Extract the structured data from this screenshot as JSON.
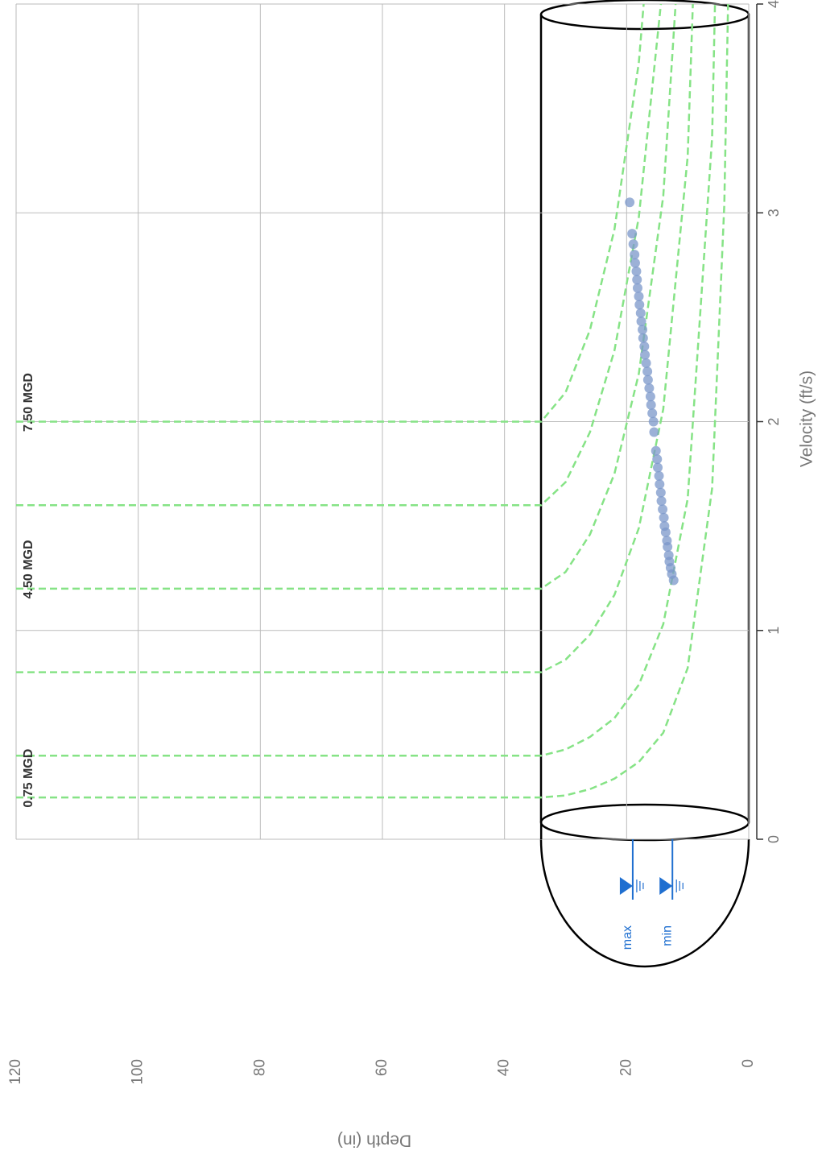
{
  "chart_data": {
    "type": "scatter",
    "xlabel": "Velocity (ft/s)",
    "ylabel": "Depth (in)",
    "xlim": [
      0,
      4
    ],
    "xticks": [
      0,
      1,
      2,
      3,
      4
    ],
    "ylim": [
      0,
      120
    ],
    "yticks": [
      0,
      20,
      40,
      60,
      80,
      100,
      120
    ],
    "grid": true,
    "pipe_diameter": 34,
    "color": "#7b97c9",
    "x": [
      1.24,
      1.27,
      1.3,
      1.33,
      1.36,
      1.4,
      1.43,
      1.47,
      1.5,
      1.54,
      1.58,
      1.62,
      1.66,
      1.7,
      1.74,
      1.78,
      1.82,
      1.86,
      1.95,
      2.0,
      2.04,
      2.08,
      2.12,
      2.16,
      2.2,
      2.24,
      2.28,
      2.32,
      2.36,
      2.4,
      2.44,
      2.48,
      2.52,
      2.56,
      2.6,
      2.64,
      2.68,
      2.72,
      2.76,
      2.8,
      2.85,
      2.9,
      3.05
    ],
    "y": [
      12.3,
      12.6,
      12.8,
      13.0,
      13.1,
      13.3,
      13.4,
      13.6,
      13.8,
      13.9,
      14.1,
      14.3,
      14.4,
      14.6,
      14.7,
      14.9,
      15.0,
      15.2,
      15.5,
      15.6,
      15.8,
      16.0,
      16.1,
      16.3,
      16.5,
      16.6,
      16.8,
      17.0,
      17.1,
      17.3,
      17.4,
      17.6,
      17.7,
      17.9,
      18.0,
      18.2,
      18.3,
      18.4,
      18.6,
      18.7,
      18.9,
      19.1,
      19.5
    ],
    "iso_lines": [
      {
        "label": "0.75 MGD",
        "color": "#86e386",
        "x": [
          0.2,
          0.2,
          0.21,
          0.24,
          0.29,
          0.37,
          0.51,
          0.82,
          1.68,
          3.04,
          4.6
        ],
        "y": [
          120,
          34,
          30,
          26,
          22,
          18,
          14,
          10,
          6,
          4,
          3
        ]
      },
      {
        "color": "#86e386",
        "x": [
          0.4,
          0.4,
          0.43,
          0.49,
          0.58,
          0.74,
          1.03,
          1.63,
          3.36,
          6.08
        ],
        "y": [
          120,
          34,
          30,
          26,
          22,
          18,
          14,
          10,
          6,
          4
        ]
      },
      {
        "color": "#86e386",
        "x": [
          0.8,
          0.8,
          0.86,
          0.98,
          1.17,
          1.49,
          2.06,
          3.27,
          6.72
        ],
        "y": [
          120,
          34,
          30,
          26,
          22,
          18,
          14,
          10,
          6
        ]
      },
      {
        "label": "4.50 MGD",
        "color": "#86e386",
        "x": [
          1.2,
          1.2,
          1.28,
          1.46,
          1.75,
          2.23,
          3.08,
          4.9
        ],
        "y": [
          120,
          34,
          30,
          26,
          22,
          18,
          14,
          10
        ]
      },
      {
        "color": "#86e386",
        "x": [
          1.6,
          1.6,
          1.71,
          1.95,
          2.34,
          2.98,
          4.11
        ],
        "y": [
          120,
          34,
          30,
          26,
          22,
          18,
          14
        ]
      },
      {
        "label": "7.50 MGD",
        "color": "#86e386",
        "x": [
          2.0,
          2.0,
          2.14,
          2.44,
          2.92,
          3.72,
          5.14
        ],
        "y": [
          120,
          34,
          30,
          26,
          22,
          18,
          14
        ]
      }
    ],
    "levels": [
      {
        "label": "max",
        "value": 19,
        "color": "#1f6fd0"
      },
      {
        "label": "min",
        "value": 12.5,
        "color": "#1f6fd0"
      }
    ]
  }
}
